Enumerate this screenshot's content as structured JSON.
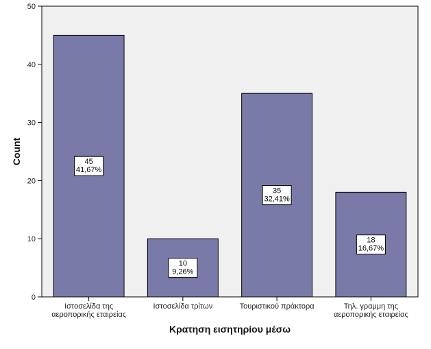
{
  "chart_data": {
    "type": "bar",
    "title": "",
    "xlabel": "Κρατηση εισητηρίου μέσω",
    "ylabel": "Count",
    "ylim": [
      0,
      50
    ],
    "yticks": [
      0,
      10,
      20,
      30,
      40,
      50
    ],
    "grid": false,
    "categories": [
      [
        "Ιστοσελίδα της",
        "αεροπορικής εταιρείας"
      ],
      [
        "Ιστοσελίδα τρίτων"
      ],
      [
        "Τουριστικού πράκτορα"
      ],
      [
        "Τηλ. γραμμη της",
        "αεροπορικής εταιρείας"
      ]
    ],
    "values": [
      45,
      10,
      35,
      18
    ],
    "data_labels": [
      [
        "45",
        "41,67%"
      ],
      [
        "10",
        "9,26%"
      ],
      [
        "35",
        "32,41%"
      ],
      [
        "18",
        "16,67%"
      ]
    ],
    "colors": {
      "bar_fill": "#7a7aa9",
      "bar_stroke": "#000000",
      "plot_background": "#f0f0f0",
      "label_box_fill": "#ffffff"
    }
  }
}
